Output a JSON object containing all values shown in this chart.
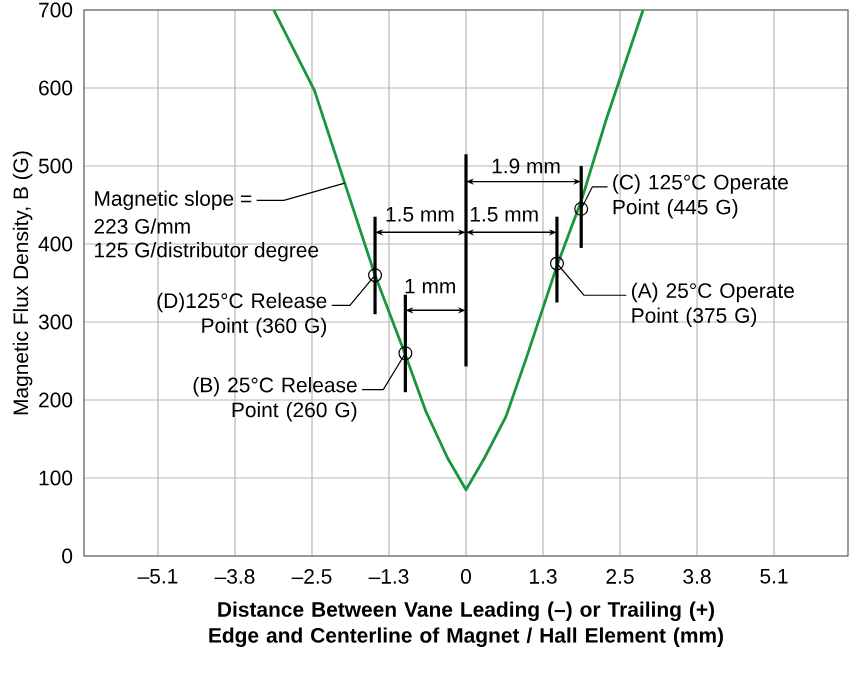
{
  "chart_data": {
    "type": "line",
    "xlabel": "Distance Between Vane Leading (–) or Trailing (+) Edge and Centerline of Magnet / Hall Element (mm)",
    "ylabel": "Magnetic Flux Density, B (G)",
    "xlim": [
      -6.3,
      6.3
    ],
    "ylim": [
      0,
      700
    ],
    "xticks": [
      {
        "value": -5.08,
        "label": "–5.1"
      },
      {
        "value": -3.81,
        "label": "–3.8"
      },
      {
        "value": -2.54,
        "label": "–2.5"
      },
      {
        "value": -1.27,
        "label": "–1.3"
      },
      0,
      {
        "value": 1.27,
        "label": "1.3"
      },
      {
        "value": 2.54,
        "label": "2.5"
      },
      {
        "value": 3.81,
        "label": "3.8"
      },
      {
        "value": 5.08,
        "label": "5.1"
      }
    ],
    "yticks": [
      0,
      100,
      200,
      300,
      400,
      500,
      600,
      700
    ],
    "grid": true,
    "series": [
      {
        "color": "#1a9641",
        "marker": "none",
        "x": [
          -3.17,
          -2.5,
          -2.0,
          -1.5,
          -1.0,
          -0.66,
          -0.3,
          0,
          0.3,
          0.66,
          1.0,
          1.5,
          1.9,
          2.31,
          2.92
        ],
        "values": [
          700,
          597,
          478,
          360,
          258,
          185,
          125,
          85,
          125,
          179,
          255,
          372,
          455,
          559,
          700
        ]
      },
      {
        "type": "scatter",
        "color": "#000000",
        "marker": "circle",
        "x": [
          -1.5,
          -1,
          1.5,
          1.9
        ],
        "values": [
          360,
          260,
          375,
          445
        ]
      }
    ],
    "annotations": [
      {
        "text": "Magnetic slope =",
        "x": -2.0,
        "y": 478
      },
      "223 G/mm",
      "125 G/distributor degree",
      {
        "text": "(D)125°C Release Point (360 G)",
        "x": -1.5,
        "y": 360
      },
      {
        "text": "(B) 25°C Release Point (260 G)",
        "x": -1,
        "y": 260
      },
      {
        "text": "(A) 25°C Operate Point (375 G)",
        "x": 1.5,
        "y": 375
      },
      {
        "text": "(C) 125°C Operate Point (445 G)",
        "x": 1.9,
        "y": 445
      },
      "1.9 mm",
      "1.5 mm",
      "1.5 mm",
      "1 mm"
    ]
  }
}
